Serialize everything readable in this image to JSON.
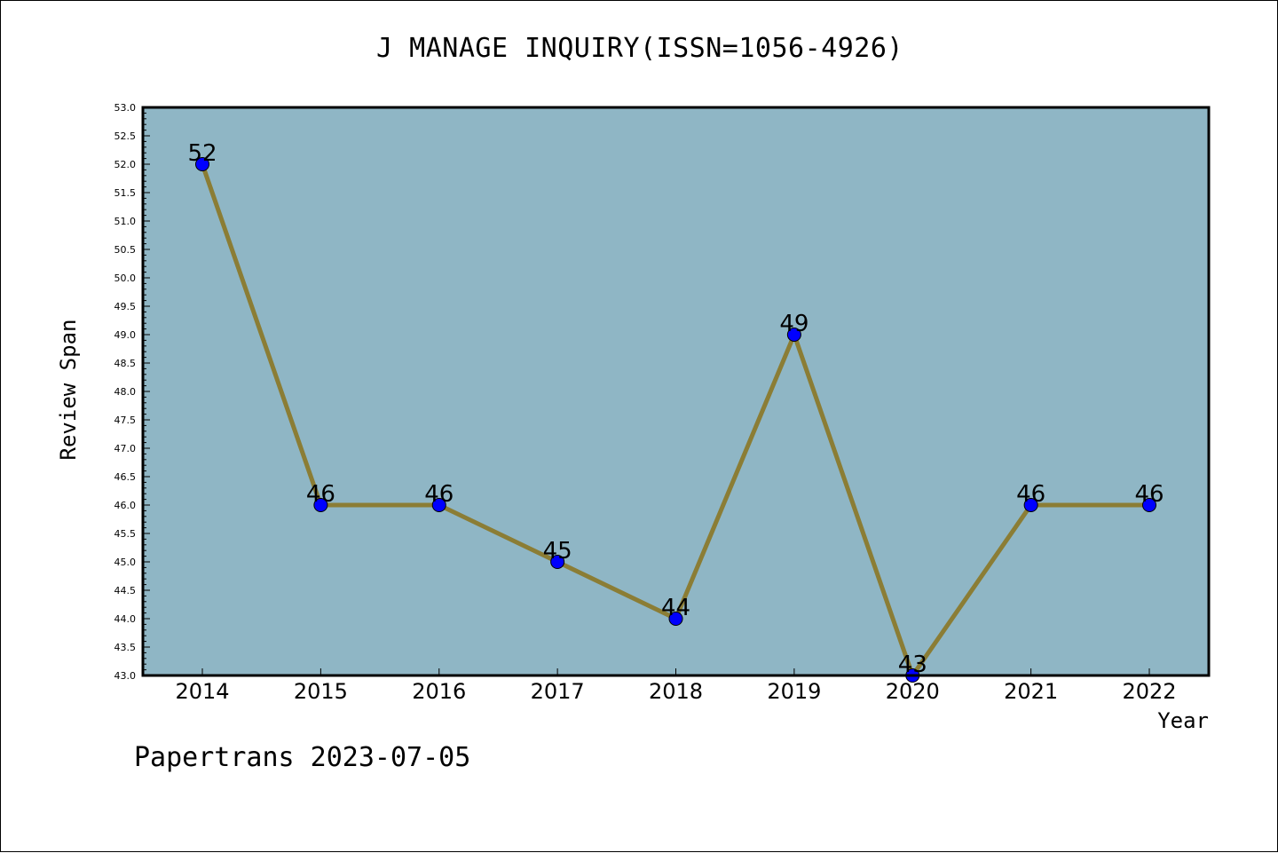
{
  "chart_data": {
    "type": "line",
    "title": "J MANAGE INQUIRY(ISSN=1056-4926)",
    "xlabel": "Year",
    "ylabel": "Review Span",
    "x": [
      "2014",
      "2015",
      "2016",
      "2017",
      "2018",
      "2019",
      "2020",
      "2021",
      "2022"
    ],
    "values": [
      52,
      46,
      46,
      45,
      44,
      49,
      43,
      46,
      46
    ],
    "data_labels": [
      "52",
      "46",
      "46",
      "45",
      "44",
      "49",
      "43",
      "46",
      "46"
    ],
    "ylim": [
      43.0,
      53.0
    ],
    "yticks": [
      "43.0",
      "43.5",
      "44.0",
      "44.5",
      "45.0",
      "45.5",
      "46.0",
      "46.5",
      "47.0",
      "47.5",
      "48.0",
      "48.5",
      "49.0",
      "49.5",
      "50.0",
      "50.5",
      "51.0",
      "51.5",
      "52.0",
      "52.5",
      "53.0"
    ],
    "grid": false,
    "legend": "none",
    "colors": {
      "plot_background": "#8fb6c5",
      "line": "#8b7d35",
      "marker": "#0000ff"
    }
  },
  "watermark": "Papertrans 2023-07-05"
}
